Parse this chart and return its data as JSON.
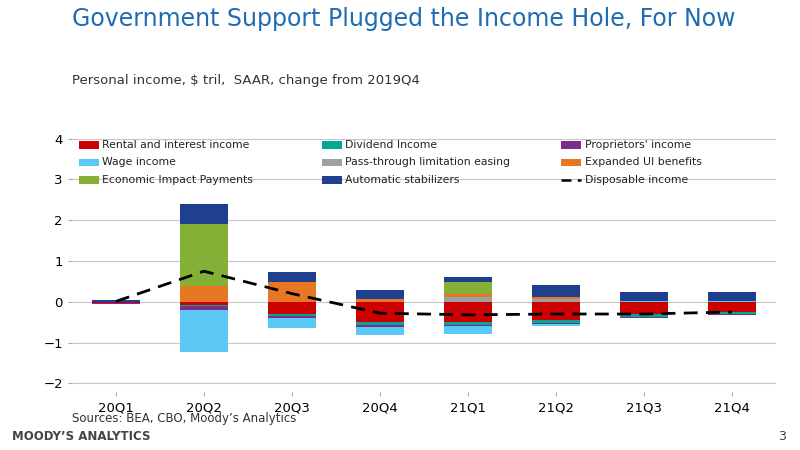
{
  "title": "Government Support Plugged the Income Hole, For Now",
  "subtitle": "Personal income, $ tril,  SAAR, change from 2019Q4",
  "source": "Sources: BEA, CBO, Moody’s Analytics",
  "footer": "MOODY’S ANALYTICS",
  "page": "3",
  "categories": [
    "20Q1",
    "20Q2",
    "20Q3",
    "20Q4",
    "21Q1",
    "21Q2",
    "21Q3",
    "21Q4"
  ],
  "ylim": [
    -2.2,
    4.2
  ],
  "yticks": [
    -2,
    -1,
    0,
    1,
    2,
    3,
    4
  ],
  "series_order": [
    "Rental and interest income",
    "Dividend Income",
    "Proprietors' income",
    "Wage income",
    "Pass-through limitation easing",
    "Expanded UI benefits",
    "Economic Impact Payments",
    "Automatic stabilizers"
  ],
  "series": {
    "Rental and interest income": {
      "color": "#cc0000",
      "values": [
        -0.04,
        -0.08,
        -0.3,
        -0.5,
        -0.5,
        -0.45,
        -0.3,
        -0.25
      ]
    },
    "Dividend Income": {
      "color": "#00a896",
      "values": [
        0.0,
        -0.03,
        -0.05,
        -0.07,
        -0.06,
        -0.07,
        -0.07,
        -0.04
      ]
    },
    "Proprietors' income": {
      "color": "#7b2d8b",
      "values": [
        -0.01,
        -0.08,
        -0.04,
        -0.04,
        -0.04,
        -0.03,
        -0.03,
        -0.03
      ]
    },
    "Wage income": {
      "color": "#5bc8f5",
      "values": [
        0.0,
        -1.05,
        -0.25,
        -0.2,
        -0.2,
        -0.05,
        0.02,
        0.02
      ]
    },
    "Pass-through limitation easing": {
      "color": "#a0a0a0",
      "values": [
        0.0,
        0.0,
        0.0,
        0.0,
        0.12,
        0.08,
        0.0,
        0.0
      ]
    },
    "Expanded UI benefits": {
      "color": "#e87722",
      "values": [
        0.0,
        0.38,
        0.48,
        0.08,
        0.08,
        0.04,
        0.0,
        0.0
      ]
    },
    "Economic Impact Payments": {
      "color": "#84b135",
      "values": [
        0.0,
        1.52,
        0.0,
        0.0,
        0.28,
        0.0,
        0.0,
        0.0
      ]
    },
    "Automatic stabilizers": {
      "color": "#1f3f8f",
      "values": [
        0.04,
        0.5,
        0.25,
        0.22,
        0.12,
        0.28,
        0.22,
        0.22
      ]
    }
  },
  "disposable_income": [
    0.01,
    0.75,
    0.2,
    -0.28,
    -0.32,
    -0.3,
    -0.3,
    -0.25
  ],
  "title_color": "#1f6bb5",
  "subtitle_color": "#333333",
  "background_color": "#ffffff",
  "plot_bg_color": "#ffffff",
  "grid_color": "#c8c8c8",
  "footer_bg_color": "#d9d9d9"
}
